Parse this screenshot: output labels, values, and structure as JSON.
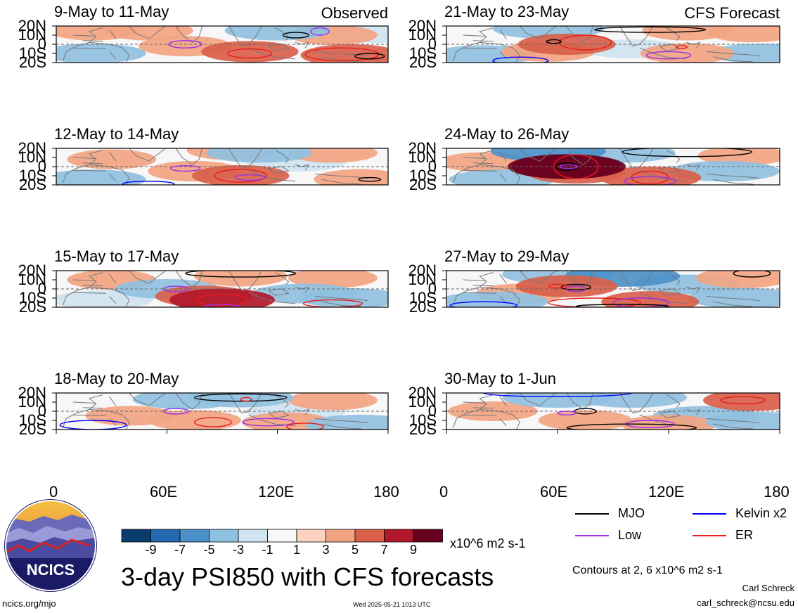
{
  "chart_data": [
    {
      "type": "heatmap",
      "title": "9-May to 11-May",
      "label": "Observed",
      "lat_ticks": [
        "20N",
        "10N",
        "0",
        "10S",
        "20S"
      ],
      "lon_range": [
        0,
        180
      ],
      "lat_range": [
        -20,
        20
      ],
      "field": "PSI850 anomaly",
      "blobs": [
        {
          "lon": 20,
          "lat": 15,
          "v": 2
        },
        {
          "lon": 70,
          "lat": -2,
          "v": 3
        },
        {
          "lon": 105,
          "lat": -8,
          "v": 4
        },
        {
          "lon": 160,
          "lat": -12,
          "v": 5
        },
        {
          "lon": 150,
          "lat": 10,
          "v": 2
        },
        {
          "lon": 50,
          "lat": 15,
          "v": 2
        },
        {
          "lon": 20,
          "lat": -10,
          "v": -2
        },
        {
          "lon": 120,
          "lat": 15,
          "v": -2
        },
        {
          "lon": 175,
          "lat": 12,
          "v": -1
        }
      ],
      "contours": [
        {
          "kind": "Low",
          "lon": 70,
          "lat": 0,
          "rx": 9,
          "ry": 4
        },
        {
          "kind": "ER",
          "lon": 105,
          "lat": -10,
          "rx": 12,
          "ry": 5
        },
        {
          "kind": "ER",
          "lon": 155,
          "lat": -11,
          "rx": 20,
          "ry": 7
        },
        {
          "kind": "MJO",
          "lon": 170,
          "lat": -13,
          "rx": 8,
          "ry": 3
        },
        {
          "kind": "MJO",
          "lon": 130,
          "lat": 10,
          "rx": 7,
          "ry": 3
        },
        {
          "kind": "Low",
          "lon": 143,
          "lat": 14,
          "rx": 5,
          "ry": 4
        }
      ]
    },
    {
      "type": "heatmap",
      "title": "12-May to 14-May",
      "label": "",
      "lat_ticks": [
        "20N",
        "10N",
        "0",
        "10S",
        "20S"
      ],
      "lon_range": [
        0,
        180
      ],
      "lat_range": [
        -20,
        20
      ],
      "field": "PSI850 anomaly",
      "blobs": [
        {
          "lon": 30,
          "lat": 8,
          "v": 2
        },
        {
          "lon": 75,
          "lat": -5,
          "v": 3
        },
        {
          "lon": 100,
          "lat": -10,
          "v": 4
        },
        {
          "lon": 165,
          "lat": -14,
          "v": 3
        },
        {
          "lon": 150,
          "lat": 15,
          "v": 2
        },
        {
          "lon": 95,
          "lat": 18,
          "v": 2
        },
        {
          "lon": 20,
          "lat": -14,
          "v": -2
        },
        {
          "lon": 110,
          "lat": 15,
          "v": -2
        },
        {
          "lon": 130,
          "lat": 5,
          "v": -1
        }
      ],
      "contours": [
        {
          "kind": "Low",
          "lon": 70,
          "lat": -2,
          "rx": 8,
          "ry": 3
        },
        {
          "kind": "ER",
          "lon": 100,
          "lat": -10,
          "rx": 14,
          "ry": 7
        },
        {
          "kind": "MJO",
          "lon": 170,
          "lat": -14,
          "rx": 6,
          "ry": 2
        },
        {
          "kind": "Kelvin x2",
          "lon": 50,
          "lat": -19,
          "rx": 14,
          "ry": 3
        },
        {
          "kind": "Low",
          "lon": 105,
          "lat": -12,
          "rx": 8,
          "ry": 3
        }
      ]
    },
    {
      "type": "heatmap",
      "title": "15-May to 17-May",
      "label": "",
      "lat_ticks": [
        "20N",
        "10N",
        "0",
        "10S",
        "20S"
      ],
      "lon_range": [
        0,
        180
      ],
      "lat_range": [
        -20,
        20
      ],
      "field": "PSI850 anomaly",
      "blobs": [
        {
          "lon": 30,
          "lat": 10,
          "v": 2
        },
        {
          "lon": 80,
          "lat": -8,
          "v": 4
        },
        {
          "lon": 90,
          "lat": -12,
          "v": 6
        },
        {
          "lon": 150,
          "lat": 12,
          "v": 2
        },
        {
          "lon": 100,
          "lat": 14,
          "v": 3
        },
        {
          "lon": 60,
          "lat": 0,
          "v": -2
        },
        {
          "lon": 135,
          "lat": -5,
          "v": -2
        },
        {
          "lon": 160,
          "lat": -10,
          "v": -2
        },
        {
          "lon": 25,
          "lat": -12,
          "v": -1
        }
      ],
      "contours": [
        {
          "kind": "Low",
          "lon": 65,
          "lat": 0,
          "rx": 7,
          "ry": 3
        },
        {
          "kind": "ER",
          "lon": 90,
          "lat": -12,
          "rx": 14,
          "ry": 6
        },
        {
          "kind": "ER",
          "lon": 150,
          "lat": -16,
          "rx": 16,
          "ry": 4
        },
        {
          "kind": "MJO",
          "lon": 100,
          "lat": 17,
          "rx": 30,
          "ry": 4
        },
        {
          "kind": "Low",
          "lon": 90,
          "lat": -20,
          "rx": 10,
          "ry": 3
        }
      ]
    },
    {
      "type": "heatmap",
      "title": "18-May to 20-May",
      "label": "",
      "lat_ticks": [
        "20N",
        "10N",
        "0",
        "10S",
        "20S"
      ],
      "lon_range": [
        0,
        180
      ],
      "lat_range": [
        -20,
        20
      ],
      "field": "PSI850 anomaly",
      "blobs": [
        {
          "lon": 40,
          "lat": -5,
          "v": 2
        },
        {
          "lon": 75,
          "lat": -10,
          "v": 3
        },
        {
          "lon": 125,
          "lat": -12,
          "v": 2
        },
        {
          "lon": 150,
          "lat": 12,
          "v": 2
        },
        {
          "lon": 100,
          "lat": 15,
          "v": -2
        },
        {
          "lon": 70,
          "lat": 13,
          "v": -2
        },
        {
          "lon": 165,
          "lat": -15,
          "v": -3
        },
        {
          "lon": 130,
          "lat": 0,
          "v": -1
        }
      ],
      "contours": [
        {
          "kind": "Low",
          "lon": 65,
          "lat": 0,
          "rx": 7,
          "ry": 3
        },
        {
          "kind": "ER",
          "lon": 85,
          "lat": -12,
          "rx": 10,
          "ry": 5
        },
        {
          "kind": "Low",
          "lon": 115,
          "lat": -12,
          "rx": 14,
          "ry": 4
        },
        {
          "kind": "Kelvin x2",
          "lon": 20,
          "lat": -15,
          "rx": 18,
          "ry": 5
        },
        {
          "kind": "MJO",
          "lon": 100,
          "lat": 15,
          "rx": 25,
          "ry": 4
        },
        {
          "kind": "ER",
          "lon": 103,
          "lat": 13,
          "rx": 3,
          "ry": 2
        },
        {
          "kind": "ER",
          "lon": 135,
          "lat": -17,
          "rx": 10,
          "ry": 4
        }
      ]
    },
    {
      "type": "heatmap",
      "title": "21-May to 23-May",
      "label": "CFS Forecast",
      "lat_ticks": [
        "20N",
        "10N",
        "0",
        "10S",
        "20S"
      ],
      "lon_range": [
        0,
        180
      ],
      "lat_range": [
        -20,
        20
      ],
      "field": "PSI850 anomaly",
      "blobs": [
        {
          "lon": 65,
          "lat": 0,
          "v": 4
        },
        {
          "lon": 55,
          "lat": -8,
          "v": 3
        },
        {
          "lon": 130,
          "lat": -10,
          "v": 3
        },
        {
          "lon": 130,
          "lat": 15,
          "v": 2
        },
        {
          "lon": 55,
          "lat": 17,
          "v": -3
        },
        {
          "lon": 20,
          "lat": -12,
          "v": -2
        },
        {
          "lon": 100,
          "lat": -5,
          "v": -1
        },
        {
          "lon": 170,
          "lat": -10,
          "v": -2
        },
        {
          "lon": 165,
          "lat": 13,
          "v": 2
        }
      ],
      "contours": [
        {
          "kind": "ER",
          "lon": 75,
          "lat": 2,
          "rx": 14,
          "ry": 8
        },
        {
          "kind": "MJO",
          "lon": 58,
          "lat": 3,
          "rx": 4,
          "ry": 2
        },
        {
          "kind": "Low",
          "lon": 120,
          "lat": -12,
          "rx": 12,
          "ry": 4
        },
        {
          "kind": "ER",
          "lon": 127,
          "lat": -3,
          "rx": 3,
          "ry": 1.5
        },
        {
          "kind": "Kelvin x2",
          "lon": 40,
          "lat": -18,
          "rx": 15,
          "ry": 4
        },
        {
          "kind": "MJO",
          "lon": 110,
          "lat": 16,
          "rx": 30,
          "ry": 3
        }
      ]
    },
    {
      "type": "heatmap",
      "title": "24-May to 26-May",
      "label": "",
      "lat_ticks": [
        "20N",
        "10N",
        "0",
        "10S",
        "20S"
      ],
      "lon_range": [
        0,
        180
      ],
      "lat_range": [
        -20,
        20
      ],
      "field": "PSI850 anomaly",
      "blobs": [
        {
          "lon": 65,
          "lat": 0,
          "v": 7
        },
        {
          "lon": 65,
          "lat": 0,
          "v": 9
        },
        {
          "lon": 70,
          "lat": -7,
          "v": 4
        },
        {
          "lon": 110,
          "lat": -12,
          "v": 5
        },
        {
          "lon": 20,
          "lat": 5,
          "v": 2
        },
        {
          "lon": 160,
          "lat": 12,
          "v": 2
        },
        {
          "lon": 55,
          "lat": 17,
          "v": -4
        },
        {
          "lon": 95,
          "lat": 15,
          "v": -2
        },
        {
          "lon": 30,
          "lat": -14,
          "v": -2
        },
        {
          "lon": 150,
          "lat": -5,
          "v": -3
        }
      ],
      "contours": [
        {
          "kind": "MJO",
          "lon": 65,
          "lat": 0,
          "rx": 6,
          "ry": 4
        },
        {
          "kind": "Low",
          "lon": 66,
          "lat": 0,
          "rx": 5,
          "ry": 2
        },
        {
          "kind": "ER",
          "lon": 70,
          "lat": 0,
          "rx": 12,
          "ry": 13
        },
        {
          "kind": "ER",
          "lon": 110,
          "lat": -12,
          "rx": 10,
          "ry": 7
        },
        {
          "kind": "Low",
          "lon": 110,
          "lat": -16,
          "rx": 14,
          "ry": 5
        },
        {
          "kind": "MJO",
          "lon": 130,
          "lat": 16,
          "rx": 35,
          "ry": 5
        }
      ]
    },
    {
      "type": "heatmap",
      "title": "27-May to 29-May",
      "label": "",
      "lat_ticks": [
        "20N",
        "10N",
        "0",
        "10S",
        "20S"
      ],
      "lon_range": [
        0,
        180
      ],
      "lat_range": [
        -20,
        20
      ],
      "field": "PSI850 anomaly",
      "blobs": [
        {
          "lon": 65,
          "lat": 3,
          "v": 5
        },
        {
          "lon": 40,
          "lat": -5,
          "v": 2
        },
        {
          "lon": 110,
          "lat": -14,
          "v": 4
        },
        {
          "lon": 160,
          "lat": 12,
          "v": 3
        },
        {
          "lon": 60,
          "lat": 16,
          "v": -3
        },
        {
          "lon": 95,
          "lat": 14,
          "v": -4
        },
        {
          "lon": 25,
          "lat": -14,
          "v": -3
        },
        {
          "lon": 160,
          "lat": -10,
          "v": -3
        },
        {
          "lon": 130,
          "lat": 5,
          "v": -2
        }
      ],
      "contours": [
        {
          "kind": "MJO",
          "lon": 70,
          "lat": 2,
          "rx": 8,
          "ry": 3
        },
        {
          "kind": "ER",
          "lon": 60,
          "lat": 3,
          "rx": 5,
          "ry": 2
        },
        {
          "kind": "Low",
          "lon": 70,
          "lat": 0,
          "rx": 5,
          "ry": 3
        },
        {
          "kind": "ER",
          "lon": 80,
          "lat": -15,
          "rx": 25,
          "ry": 5
        },
        {
          "kind": "Low",
          "lon": 105,
          "lat": -15,
          "rx": 15,
          "ry": 5
        },
        {
          "kind": "Kelvin x2",
          "lon": 20,
          "lat": -18,
          "rx": 18,
          "ry": 4
        },
        {
          "kind": "MJO",
          "lon": 95,
          "lat": -19,
          "rx": 25,
          "ry": 2
        },
        {
          "kind": "MJO",
          "lon": 165,
          "lat": 17,
          "rx": 10,
          "ry": 4
        }
      ]
    },
    {
      "type": "heatmap",
      "title": "30-May to 1-Jun",
      "label": "",
      "lat_ticks": [
        "20N",
        "10N",
        "0",
        "10S",
        "20S"
      ],
      "lon_range": [
        0,
        180
      ],
      "lat_range": [
        -20,
        20
      ],
      "field": "PSI850 anomaly",
      "blobs": [
        {
          "lon": 25,
          "lat": 0,
          "v": 2
        },
        {
          "lon": 75,
          "lat": -10,
          "v": 3
        },
        {
          "lon": 120,
          "lat": -15,
          "v": 3
        },
        {
          "lon": 165,
          "lat": 12,
          "v": 4
        },
        {
          "lon": 60,
          "lat": 15,
          "v": -3
        },
        {
          "lon": 100,
          "lat": 15,
          "v": -3
        },
        {
          "lon": 170,
          "lat": -12,
          "v": -3
        },
        {
          "lon": 140,
          "lat": -5,
          "v": -2
        }
      ],
      "contours": [
        {
          "kind": "MJO",
          "lon": 75,
          "lat": 0,
          "rx": 6,
          "ry": 3
        },
        {
          "kind": "Low",
          "lon": 65,
          "lat": -2,
          "rx": 5,
          "ry": 2
        },
        {
          "kind": "Low",
          "lon": 110,
          "lat": -14,
          "rx": 13,
          "ry": 4
        },
        {
          "kind": "MJO",
          "lon": 100,
          "lat": -18,
          "rx": 35,
          "ry": 4
        },
        {
          "kind": "ER",
          "lon": 160,
          "lat": 12,
          "rx": 12,
          "ry": 4
        },
        {
          "kind": "Kelvin x2",
          "lon": 60,
          "lat": 20,
          "rx": 40,
          "ry": 4
        }
      ]
    }
  ],
  "x_ticks": [
    "0",
    "60E",
    "120E",
    "180"
  ],
  "legend": {
    "items": [
      {
        "label": "MJO",
        "color": "#000000"
      },
      {
        "label": "Kelvin x2",
        "color": "#0000ff"
      },
      {
        "label": "Low",
        "color": "#9b30e8"
      },
      {
        "label": "ER",
        "color": "#e81c1c"
      }
    ]
  },
  "colorbar": {
    "labels": [
      "-9",
      "-7",
      "-5",
      "-3",
      "-1",
      "1",
      "3",
      "5",
      "7",
      "9"
    ],
    "colors": [
      "#0b3c6f",
      "#2468b0",
      "#4c90c8",
      "#90c0df",
      "#cfe3f0",
      "#f7f7f7",
      "#fbd3c0",
      "#f2a482",
      "#d95f4a",
      "#b1182b",
      "#67001f"
    ],
    "units": "x10^6 m2 s-1"
  },
  "footer": {
    "logo_text": "NCICS",
    "title": "3-day PSI850 with CFS forecasts",
    "site": "ncics.org/mjo",
    "timestamp": "Wed 2025-05-21 1013 UTC",
    "contours_note": "Contours at 2, 6 x10^6 m2 s-1",
    "author": "Carl Schreck",
    "email": "carl_schreck@ncsu.edu"
  }
}
